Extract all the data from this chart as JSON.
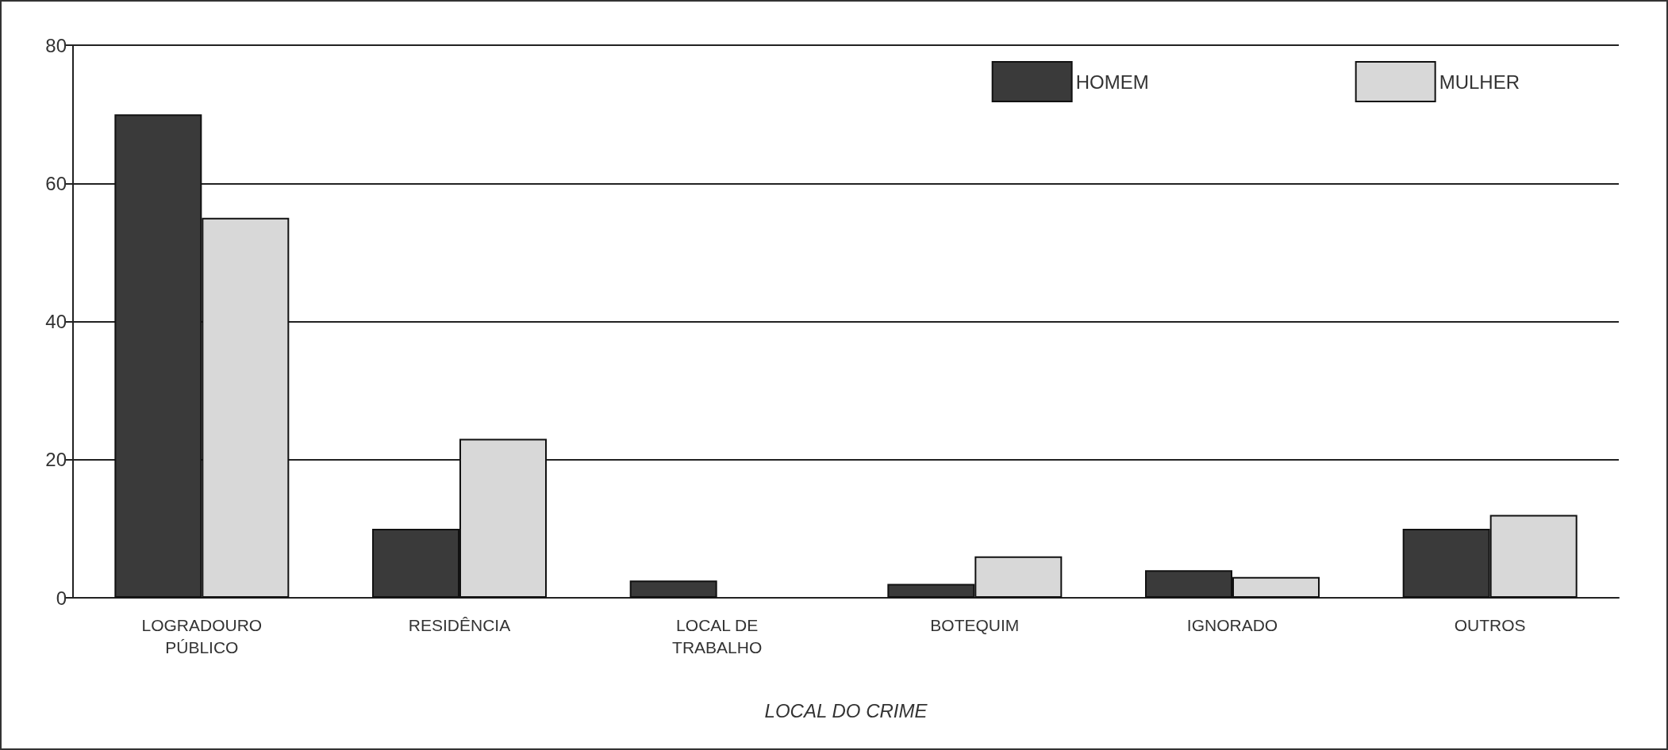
{
  "chart_data": {
    "type": "bar",
    "xlabel": "LOCAL DO CRIME",
    "categories": [
      "LOGRADOURO\nPÚBLICO",
      "RESIDÊNCIA",
      "LOCAL DE\nTRABALHO",
      "BOTEQUIM",
      "IGNORADO",
      "OUTROS"
    ],
    "series": [
      {
        "name": "HOMEM",
        "color": "#3a3a3a",
        "values": [
          70,
          10,
          2.5,
          2,
          4,
          10
        ]
      },
      {
        "name": "MULHER",
        "color": "#d8d8d8",
        "values": [
          55,
          23,
          null,
          6,
          3,
          12
        ]
      }
    ],
    "ylim": [
      0,
      80
    ],
    "yticks": [
      0,
      20,
      40,
      60,
      80
    ],
    "grid": "y",
    "legend": "top right"
  }
}
